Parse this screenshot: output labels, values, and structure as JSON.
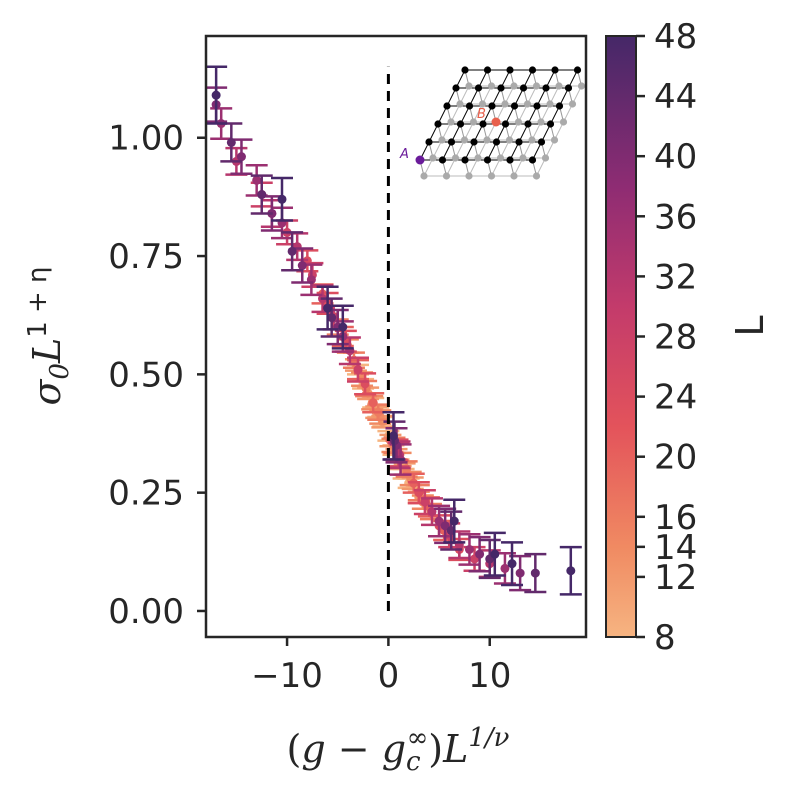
{
  "chart_data": {
    "type": "scatter",
    "title": "",
    "xlabel": "(g − g_c^∞)L^{1/ν}",
    "ylabel": "σ₀L^{1+η}",
    "xlabel_parts": {
      "open": "(",
      "g": "g",
      "minus": " − ",
      "gc": "g",
      "sub": "c",
      "sup": "∞",
      "close": ")",
      "L": "L",
      "exp": "1/ν"
    },
    "ylabel_parts": {
      "sigma": "σ",
      "sub": "0",
      "L": "L",
      "exp": "1 + η"
    },
    "xlim": [
      -18,
      19.5
    ],
    "ylim": [
      -0.055,
      1.215
    ],
    "xticks": [
      -10,
      0,
      10
    ],
    "xtick_labels": [
      "−10",
      "0",
      "10"
    ],
    "yticks": [
      0,
      0.25,
      0.5,
      0.75,
      1.0
    ],
    "ytick_labels": [
      "0.00",
      "0.25",
      "0.50",
      "0.75",
      "1.00"
    ],
    "critical_line": {
      "x": 0,
      "y_range": [
        0,
        1.15
      ],
      "style": "dashed",
      "color": "#000000"
    },
    "colormap": {
      "name": "magma_r",
      "label": "L",
      "range": [
        8,
        48
      ],
      "ticks": [
        8,
        12,
        14,
        16,
        20,
        24,
        28,
        32,
        36,
        40,
        44,
        48
      ],
      "low_color": "#f0a879",
      "high_color": "#452868"
    },
    "series": [
      {
        "L": 8,
        "points": [
          [
            -1.5,
            0.44,
            0.01
          ],
          [
            -1.0,
            0.42,
            0.01
          ],
          [
            -0.5,
            0.4,
            0.01
          ],
          [
            0.0,
            0.37,
            0.01
          ],
          [
            0.5,
            0.34,
            0.01
          ],
          [
            1.0,
            0.31,
            0.01
          ],
          [
            1.5,
            0.29,
            0.01
          ],
          [
            2.0,
            0.27,
            0.01
          ],
          [
            -2.5,
            0.48,
            0.01
          ],
          [
            -3.0,
            0.51,
            0.01
          ]
        ]
      },
      {
        "L": 12,
        "points": [
          [
            -2.0,
            0.46,
            0.012
          ],
          [
            -1.2,
            0.42,
            0.012
          ],
          [
            -0.6,
            0.4,
            0.012
          ],
          [
            0.2,
            0.36,
            0.012
          ],
          [
            0.8,
            0.33,
            0.012
          ],
          [
            1.6,
            0.3,
            0.012
          ],
          [
            2.4,
            0.27,
            0.012
          ],
          [
            -3.2,
            0.52,
            0.012
          ],
          [
            3.0,
            0.24,
            0.012
          ]
        ]
      },
      {
        "L": 14,
        "points": [
          [
            -2.6,
            0.49,
            0.014
          ],
          [
            -1.6,
            0.44,
            0.014
          ],
          [
            -0.8,
            0.41,
            0.014
          ],
          [
            0.4,
            0.35,
            0.014
          ],
          [
            1.2,
            0.32,
            0.014
          ],
          [
            2.2,
            0.28,
            0.014
          ],
          [
            -4.0,
            0.56,
            0.014
          ],
          [
            3.4,
            0.23,
            0.014
          ]
        ]
      },
      {
        "L": 16,
        "points": [
          [
            -3.4,
            0.53,
            0.016
          ],
          [
            -2.2,
            0.47,
            0.016
          ],
          [
            -1.0,
            0.42,
            0.016
          ],
          [
            0.6,
            0.35,
            0.016
          ],
          [
            1.8,
            0.3,
            0.016
          ],
          [
            3.0,
            0.25,
            0.016
          ],
          [
            -5.0,
            0.6,
            0.016
          ],
          [
            4.2,
            0.21,
            0.016
          ]
        ]
      },
      {
        "L": 20,
        "points": [
          [
            -4.5,
            0.58,
            0.02
          ],
          [
            -3.0,
            0.51,
            0.02
          ],
          [
            -1.5,
            0.44,
            0.02
          ],
          [
            0.8,
            0.34,
            0.02
          ],
          [
            2.5,
            0.27,
            0.02
          ],
          [
            4.0,
            0.22,
            0.02
          ],
          [
            -6.5,
            0.67,
            0.02
          ],
          [
            5.5,
            0.17,
            0.02
          ]
        ]
      },
      {
        "L": 24,
        "points": [
          [
            -6.0,
            0.65,
            0.022
          ],
          [
            -4.2,
            0.57,
            0.022
          ],
          [
            -2.3,
            0.48,
            0.022
          ],
          [
            0.9,
            0.34,
            0.022
          ],
          [
            3.0,
            0.25,
            0.022
          ],
          [
            5.0,
            0.18,
            0.022
          ],
          [
            -8.0,
            0.74,
            0.022
          ],
          [
            7.0,
            0.13,
            0.022
          ]
        ]
      },
      {
        "L": 28,
        "points": [
          [
            -7.5,
            0.71,
            0.025
          ],
          [
            -5.4,
            0.62,
            0.025
          ],
          [
            -3.0,
            0.51,
            0.025
          ],
          [
            1.0,
            0.33,
            0.025
          ],
          [
            3.6,
            0.23,
            0.025
          ],
          [
            6.0,
            0.16,
            0.025
          ],
          [
            -10.0,
            0.8,
            0.025
          ],
          [
            8.5,
            0.11,
            0.025
          ],
          [
            -12.5,
            0.88,
            0.025
          ]
        ]
      },
      {
        "L": 32,
        "points": [
          [
            -9.0,
            0.77,
            0.028
          ],
          [
            -6.5,
            0.66,
            0.028
          ],
          [
            -3.8,
            0.55,
            0.028
          ],
          [
            1.1,
            0.33,
            0.028
          ],
          [
            4.3,
            0.21,
            0.028
          ],
          [
            7.0,
            0.14,
            0.028
          ],
          [
            -11.5,
            0.84,
            0.028
          ],
          [
            10.0,
            0.1,
            0.028
          ],
          [
            -15.0,
            0.95,
            0.028
          ]
        ]
      },
      {
        "L": 36,
        "points": [
          [
            -10.5,
            0.82,
            0.032
          ],
          [
            -7.6,
            0.7,
            0.032
          ],
          [
            -4.5,
            0.58,
            0.032
          ],
          [
            1.2,
            0.32,
            0.032
          ],
          [
            5.0,
            0.19,
            0.032
          ],
          [
            8.0,
            0.13,
            0.032
          ],
          [
            -13.0,
            0.91,
            0.032
          ],
          [
            11.5,
            0.09,
            0.032
          ],
          [
            -16.5,
            1.03,
            0.032
          ]
        ]
      },
      {
        "L": 40,
        "points": [
          [
            -11.5,
            0.84,
            0.036
          ],
          [
            -8.5,
            0.73,
            0.036
          ],
          [
            -5.0,
            0.6,
            0.036
          ],
          [
            0.8,
            0.35,
            0.036
          ],
          [
            5.6,
            0.18,
            0.036
          ],
          [
            9.0,
            0.12,
            0.036
          ],
          [
            -14.5,
            0.96,
            0.036
          ],
          [
            13.0,
            0.08,
            0.036
          ],
          [
            -17.0,
            1.07,
            0.036
          ]
        ]
      },
      {
        "L": 44,
        "points": [
          [
            -12.5,
            0.88,
            0.04
          ],
          [
            -9.5,
            0.76,
            0.04
          ],
          [
            -5.6,
            0.62,
            0.04
          ],
          [
            0.6,
            0.36,
            0.04
          ],
          [
            6.2,
            0.17,
            0.04
          ],
          [
            10.0,
            0.11,
            0.04
          ],
          [
            -15.5,
            0.99,
            0.04
          ],
          [
            14.5,
            0.08,
            0.04
          ]
        ]
      },
      {
        "L": 48,
        "points": [
          [
            -17.0,
            1.09,
            0.06
          ],
          [
            -10.5,
            0.87,
            0.045
          ],
          [
            -6.0,
            0.64,
            0.045
          ],
          [
            -4.5,
            0.6,
            0.045
          ],
          [
            0.5,
            0.37,
            0.05
          ],
          [
            6.5,
            0.19,
            0.045
          ],
          [
            10.5,
            0.12,
            0.045
          ],
          [
            12.2,
            0.1,
            0.045
          ],
          [
            18.0,
            0.085,
            0.05
          ]
        ]
      }
    ],
    "inset": {
      "description": "honeycomb lattice on rhombus",
      "sublattice_A_label": "A",
      "sublattice_B_label": "B",
      "A_color": "#000000",
      "B_color": "#aaaaaa",
      "marker_A_color": "#6a1b9a",
      "marker_B_color": "#e8604c"
    }
  }
}
